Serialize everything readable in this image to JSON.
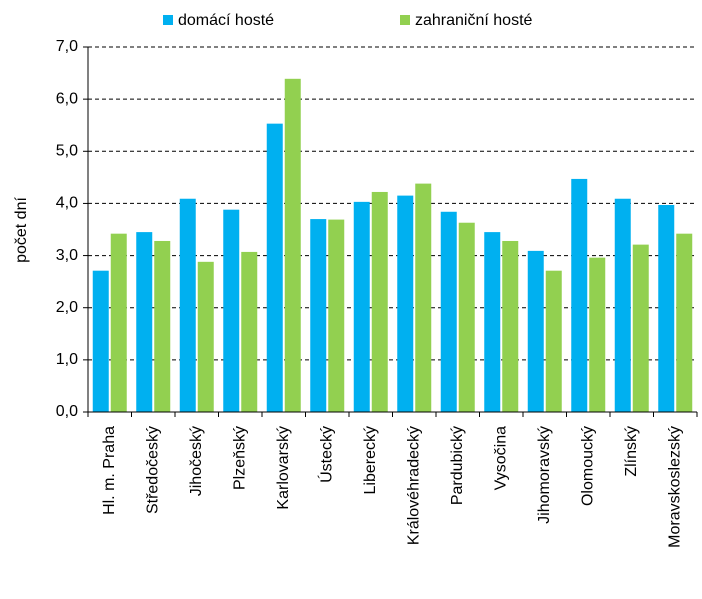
{
  "chart_data": {
    "type": "bar",
    "y_label": "počet dní",
    "categories": [
      "Hl. m. Praha",
      "Středočeský",
      "Jihočeský",
      "Plzeňský",
      "Karlovarský",
      "Ústecký",
      "Liberecký",
      "Královéhradecký",
      "Pardubický",
      "Vysočina",
      "Jihomoravský",
      "Olomoucký",
      "Zlínský",
      "Moravskoslezský"
    ],
    "series": [
      {
        "name": "domácí hosté",
        "color": "#00b0f0",
        "values": [
          2.71,
          3.45,
          4.09,
          3.88,
          5.53,
          3.7,
          4.03,
          4.15,
          3.84,
          3.45,
          3.09,
          4.47,
          4.09,
          3.97
        ]
      },
      {
        "name": "zahraniční hosté",
        "color": "#92d050",
        "values": [
          3.42,
          3.28,
          2.88,
          3.07,
          6.39,
          3.69,
          4.22,
          4.38,
          3.63,
          3.28,
          2.71,
          2.96,
          3.21,
          3.42
        ]
      }
    ],
    "ylim": [
      0,
      7
    ],
    "yticks": [
      {
        "value": 0,
        "label": "0,0"
      },
      {
        "value": 1,
        "label": "1,0"
      },
      {
        "value": 2,
        "label": "2,0"
      },
      {
        "value": 3,
        "label": "3,0"
      },
      {
        "value": 4,
        "label": "4,0"
      },
      {
        "value": 5,
        "label": "5,0"
      },
      {
        "value": 6,
        "label": "6,0"
      },
      {
        "value": 7,
        "label": "7,0"
      }
    ],
    "grid": true,
    "legend": "top"
  }
}
